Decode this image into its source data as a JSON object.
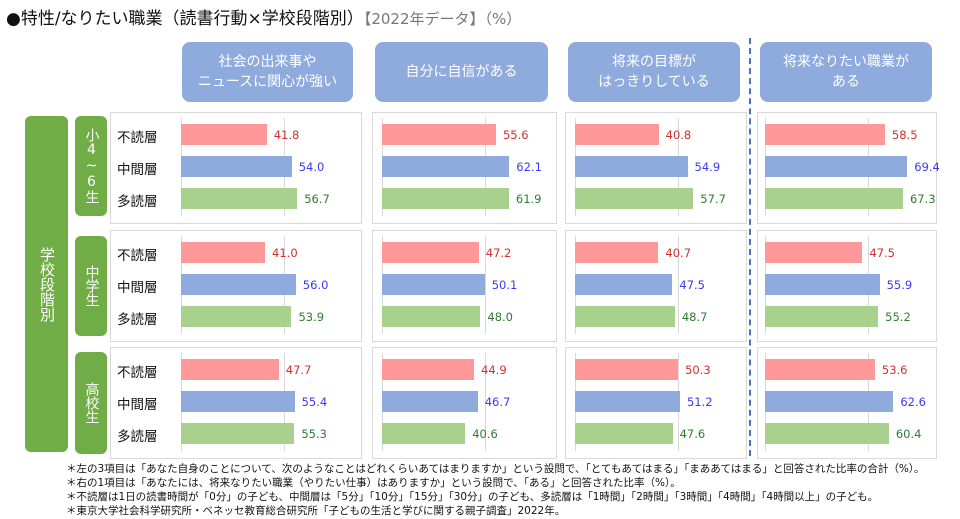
{
  "title": {
    "main": "●特性/なりたい職業（読書行動×学校段階別）",
    "sub": "【2022年データ】（%）"
  },
  "chart_data": {
    "type": "bar",
    "orientation": "horizontal",
    "group_axis_label": "学校段階別",
    "panels": [
      "社会の出来事や\nニュースに関心が強い",
      "自分に自信がある",
      "将来の目標が\nはっきりしている",
      "将来なりたい職業が\nある"
    ],
    "groups": [
      "小4~6生",
      "中学生",
      "高校生"
    ],
    "categories": [
      "不読層",
      "中間層",
      "多読層"
    ],
    "colors": {
      "不読層": "#ff9999",
      "中間層": "#8faadc",
      "多読層": "#a9d18e"
    },
    "label_colors": {
      "不読層": "#d03030",
      "中間層": "#3a3af0",
      "多読層": "#2e7d32"
    },
    "values": [
      [
        [
          41.8,
          54.0,
          56.7
        ],
        [
          55.6,
          62.1,
          61.9
        ],
        [
          40.8,
          54.9,
          57.7
        ],
        [
          58.5,
          69.4,
          67.3
        ]
      ],
      [
        [
          41.0,
          56.0,
          53.9
        ],
        [
          47.2,
          50.1,
          48.0
        ],
        [
          40.7,
          47.5,
          48.7
        ],
        [
          47.5,
          55.9,
          55.2
        ]
      ],
      [
        [
          47.7,
          55.4,
          55.3
        ],
        [
          44.9,
          46.7,
          40.6
        ],
        [
          50.3,
          51.2,
          47.6
        ],
        [
          53.6,
          62.6,
          60.4
        ]
      ]
    ],
    "labels": [
      [
        [
          "41.8",
          "54.0",
          "56.7"
        ],
        [
          "55.6",
          "62.1",
          "61.9"
        ],
        [
          "40.8",
          "54.9",
          "57.7"
        ],
        [
          "58.5",
          "69.4",
          "67.3"
        ]
      ],
      [
        [
          "41.0",
          "56.0",
          "53.9"
        ],
        [
          "47.2",
          "50.1",
          "48.0"
        ],
        [
          "40.7",
          "47.5",
          "48.7"
        ],
        [
          "47.5",
          "55.9",
          "55.2"
        ]
      ],
      [
        [
          "47.7",
          "55.4",
          "55.3"
        ],
        [
          "44.9",
          "46.7",
          "40.6"
        ],
        [
          "50.3",
          "51.2",
          "47.6"
        ],
        [
          "53.6",
          "62.6",
          "60.4"
        ]
      ]
    ]
  },
  "notes": [
    "＊左の3項目は「あなた自身のことについて、次のようなことはどれくらいあてはまりますか」という設問で、「とてもあてはまる」「まああてはまる」と回答された比率の合計（%）。",
    "＊右の1項目は「あなたには、将来なりたい職業（やりたい仕事）はありますか」という設問で、「ある」と回答された比率（%）。",
    "＊不読層は1日の読書時間が「0分」の子ども、中間層は「5分」「10分」「15分」「30分」の子ども、多読層は「1時間」「2時間」「3時間」「4時間」「4時間以上」の子ども。",
    "＊東京大学社会科学研究所・ベネッセ教育総合研究所「子どもの生活と学びに関する親子調査」2022年。"
  ]
}
